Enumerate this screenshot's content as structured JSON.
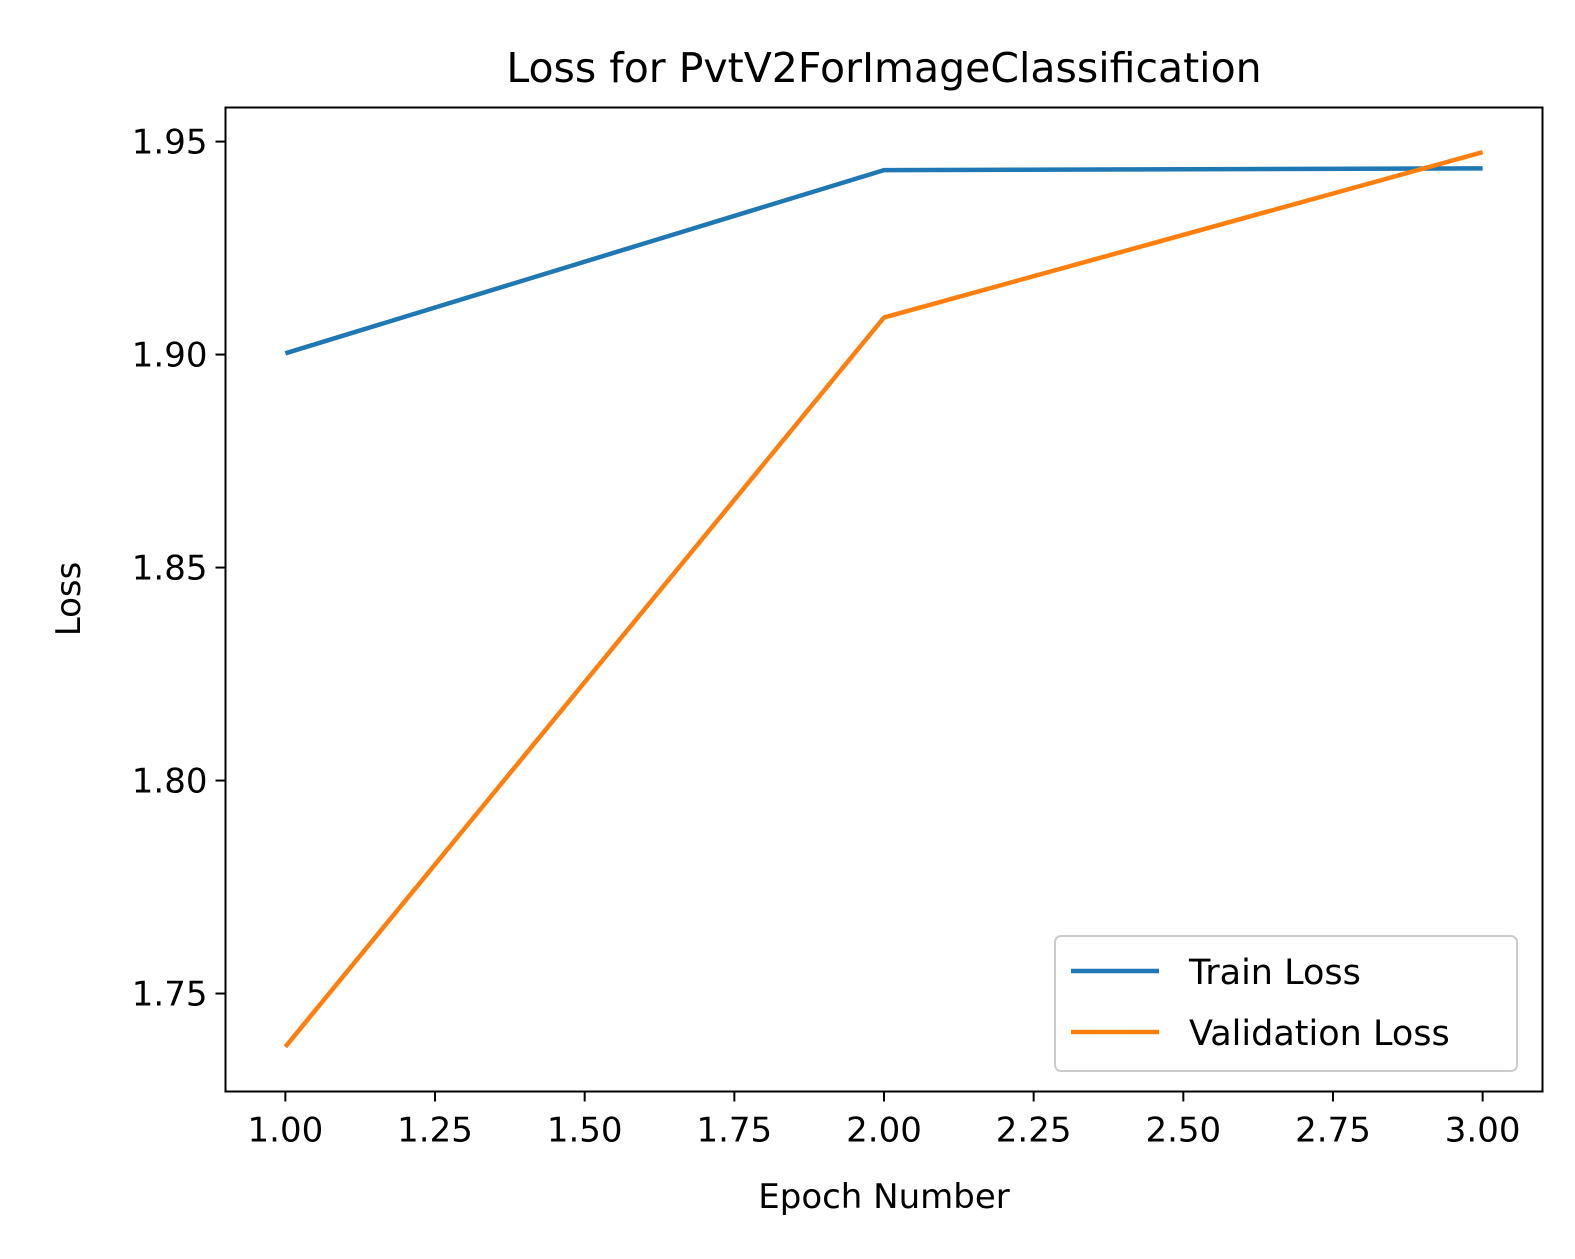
{
  "chart_data": {
    "type": "line",
    "title": "Loss for PvtV2ForImageClassification",
    "xlabel": "Epoch Number",
    "ylabel": "Loss",
    "xlim": [
      0.9,
      3.1
    ],
    "ylim": [
      1.727,
      1.958
    ],
    "xticks": [
      1.0,
      1.25,
      1.5,
      1.75,
      2.0,
      2.25,
      2.5,
      2.75,
      3.0
    ],
    "xtick_labels": [
      "1.00",
      "1.25",
      "1.50",
      "1.75",
      "2.00",
      "2.25",
      "2.50",
      "2.75",
      "3.00"
    ],
    "yticks": [
      1.75,
      1.8,
      1.85,
      1.9,
      1.95
    ],
    "ytick_labels": [
      "1.75",
      "1.80",
      "1.85",
      "1.90",
      "1.95"
    ],
    "grid": false,
    "legend_position": "lower right",
    "series": [
      {
        "name": "Train Loss",
        "color": "#1f77b4",
        "x": [
          1,
          2,
          3
        ],
        "y": [
          1.9003,
          1.9433,
          1.9437
        ]
      },
      {
        "name": "Validation Loss",
        "color": "#ff7f0e",
        "x": [
          1,
          2,
          3
        ],
        "y": [
          1.7375,
          1.9087,
          1.9475
        ]
      }
    ]
  }
}
